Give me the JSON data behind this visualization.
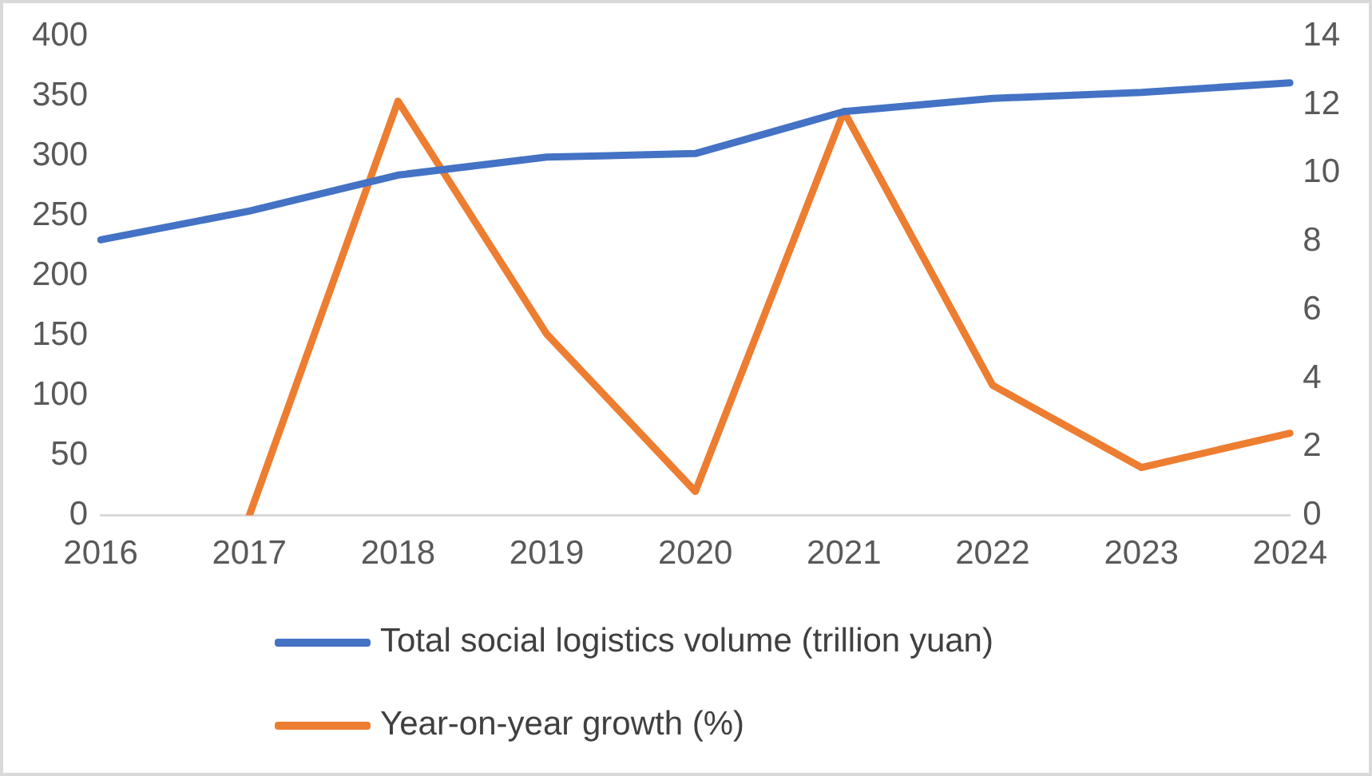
{
  "chart_data": {
    "type": "line",
    "categories": [
      "2016",
      "2017",
      "2018",
      "2019",
      "2020",
      "2021",
      "2022",
      "2023",
      "2024"
    ],
    "series": [
      {
        "name": "Total social logistics volume (trillion yuan)",
        "color": "#4472c4",
        "values": [
          230,
          254,
          284,
          299,
          302,
          337,
          348,
          353,
          361
        ]
      },
      {
        "name": "Year-on-year growth (%)",
        "color": "#ed7d31",
        "axis": "y2",
        "values": [
          null,
          0,
          12.1,
          5.3,
          0.7,
          11.8,
          3.8,
          1.4,
          2.4
        ]
      }
    ],
    "ylim": [
      0,
      400
    ],
    "yticks": [
      0,
      50,
      100,
      150,
      200,
      250,
      300,
      350,
      400
    ],
    "y2lim": [
      0,
      14
    ],
    "y2ticks": [
      0,
      2,
      4,
      6,
      8,
      10,
      12,
      14
    ],
    "grid": false,
    "legend": "bottom",
    "marker": "none",
    "line_style": "solid"
  }
}
